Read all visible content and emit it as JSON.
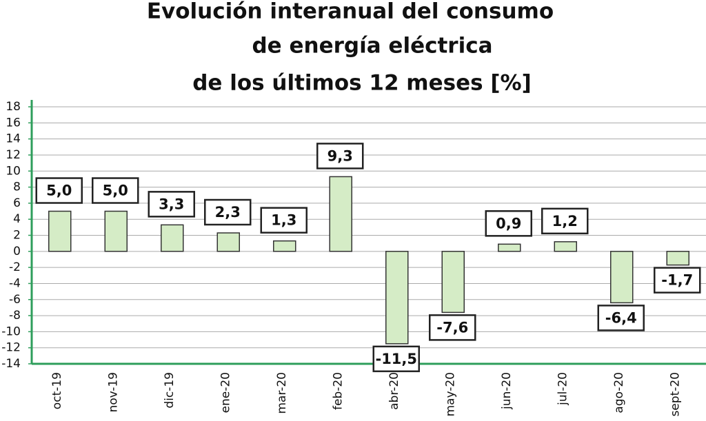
{
  "chart_data": {
    "type": "bar",
    "title": [
      "Evolución interanual del consumo",
      "de energía eléctrica",
      "de los últimos 12 meses [%]"
    ],
    "categories": [
      "oct-19",
      "nov-19",
      "dic-19",
      "ene-20",
      "mar-20",
      "feb-20",
      "abr-20",
      "may-20",
      "jun-20",
      "jul-20",
      "ago-20",
      "sept-20"
    ],
    "values": [
      5.0,
      5.0,
      3.3,
      2.3,
      1.3,
      9.3,
      -11.5,
      -7.6,
      0.9,
      1.2,
      -6.4,
      -1.7
    ],
    "value_labels": [
      "5,0",
      "5,0",
      "3,3",
      "2,3",
      "1,3",
      "9,3",
      "-11,5",
      "-7,6",
      "0,9",
      "1,2",
      "-6,4",
      "-1,7"
    ],
    "color": "#d5ecc6",
    "ylim": [
      -14,
      18
    ],
    "yticks": [
      -14,
      -12,
      -10,
      -8,
      -6,
      -4,
      -2,
      0,
      2,
      4,
      6,
      8,
      10,
      12,
      14,
      16,
      18
    ],
    "grid": true
  }
}
